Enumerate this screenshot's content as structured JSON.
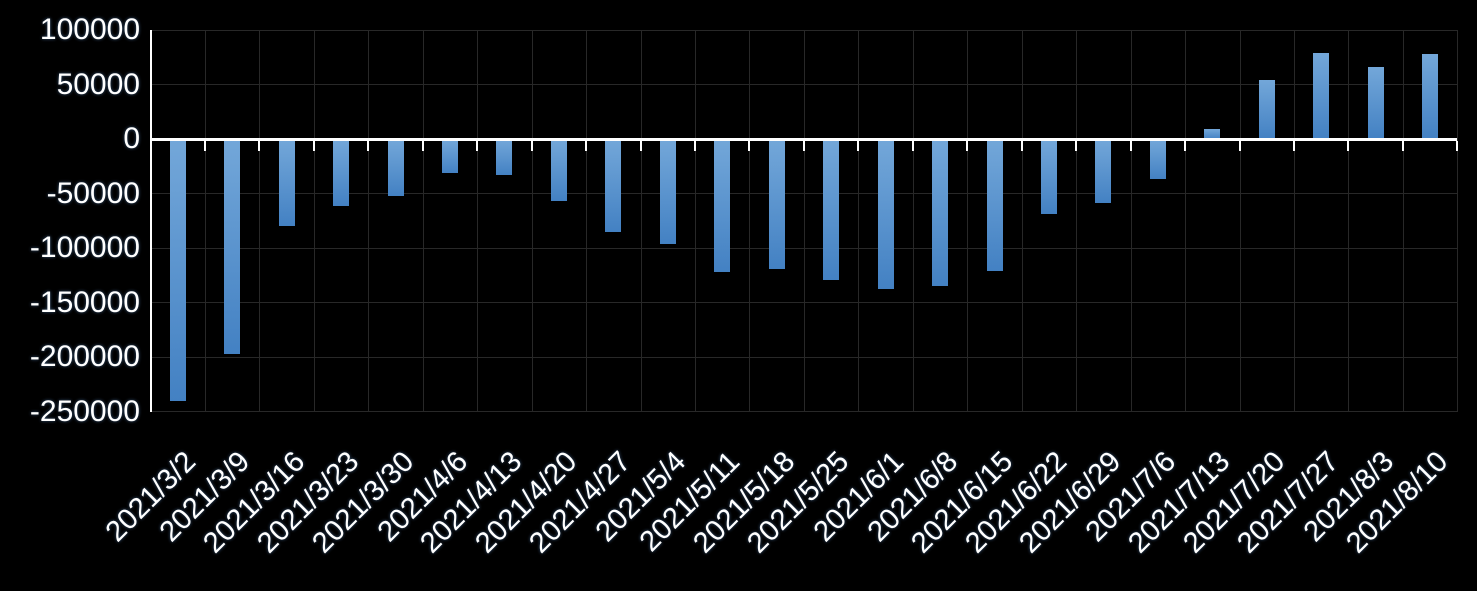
{
  "chart_data": {
    "type": "bar",
    "title": "",
    "xlabel": "",
    "ylabel": "",
    "categories": [
      "2021/3/2",
      "2021/3/9",
      "2021/3/16",
      "2021/3/23",
      "2021/3/30",
      "2021/4/6",
      "2021/4/13",
      "2021/4/20",
      "2021/4/27",
      "2021/5/4",
      "2021/5/11",
      "2021/5/18",
      "2021/5/25",
      "2021/6/1",
      "2021/6/8",
      "2021/6/15",
      "2021/6/22",
      "2021/6/29",
      "2021/7/6",
      "2021/7/13",
      "2021/7/20",
      "2021/7/27",
      "2021/8/3",
      "2021/8/10"
    ],
    "values": [
      -239000,
      -196000,
      -79000,
      -61000,
      -51000,
      -30000,
      -32000,
      -56000,
      -84000,
      -95000,
      -121000,
      -118000,
      -128000,
      -137000,
      -134000,
      -120000,
      -68000,
      -58000,
      -36000,
      9000,
      54000,
      79000,
      66000,
      78000
    ],
    "ylim": [
      -250000,
      100000
    ],
    "ytick_step": 50000,
    "ytick_labels": [
      "100000",
      "50000",
      "0",
      "-50000",
      "-100000",
      "-150000",
      "-200000",
      "-250000"
    ],
    "grid": true,
    "legend": false,
    "colors": {
      "background": "#000000",
      "bar_gradient_top": "#73a7d9",
      "bar_gradient_bottom": "#4381c3",
      "gridline": "#282828",
      "axis_line": "#ffffff",
      "label_text": "#ffffff"
    }
  }
}
